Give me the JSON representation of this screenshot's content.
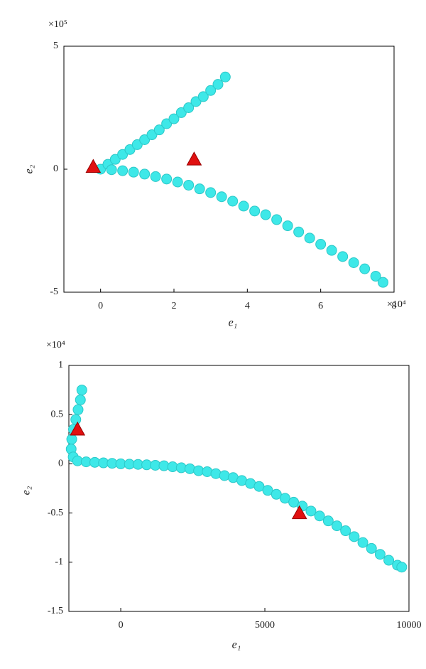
{
  "chart_data": [
    {
      "type": "scatter",
      "x_label": "e₁",
      "y_label": "e₂",
      "x_multiplier": "×10⁴",
      "y_multiplier": "×10⁵",
      "xlim": [
        -1,
        8
      ],
      "ylim": [
        -5,
        5
      ],
      "xticks": [
        0,
        2,
        4,
        6,
        8
      ],
      "yticks": [
        -5,
        0,
        5
      ],
      "series": [
        {
          "color": "#3ee8e8",
          "marker": "circle",
          "x": [
            0,
            0.2,
            0.4,
            0.6,
            0.8,
            1.0,
            1.2,
            1.4,
            1.6,
            1.8,
            2.0,
            2.2,
            2.4,
            2.6,
            2.8,
            3.0,
            3.2,
            3.4,
            0.3,
            0.6,
            0.9,
            1.2,
            1.5,
            1.8,
            2.1,
            2.4,
            2.7,
            3.0,
            3.3,
            3.6,
            3.9,
            4.2,
            4.5,
            4.8,
            5.1,
            5.4,
            5.7,
            6.0,
            6.3,
            6.6,
            6.9,
            7.2,
            7.5,
            7.7
          ],
          "values": [
            0,
            0.2,
            0.4,
            0.6,
            0.8,
            1.0,
            1.2,
            1.4,
            1.6,
            1.85,
            2.05,
            2.3,
            2.5,
            2.75,
            2.95,
            3.2,
            3.45,
            3.75,
            -0.02,
            -0.06,
            -0.12,
            -0.2,
            -0.3,
            -0.4,
            -0.52,
            -0.65,
            -0.8,
            -0.95,
            -1.12,
            -1.3,
            -1.5,
            -1.7,
            -1.85,
            -2.05,
            -2.3,
            -2.55,
            -2.8,
            -3.05,
            -3.3,
            -3.55,
            -3.8,
            -4.05,
            -4.35,
            -4.6
          ]
        },
        {
          "color": "#e01010",
          "marker": "triangle",
          "x": [
            -0.2,
            2.55
          ],
          "values": [
            0.1,
            0.4
          ]
        }
      ]
    },
    {
      "type": "scatter",
      "x_label": "e₁",
      "y_label": "e₂",
      "y_multiplier": "×10⁴",
      "xlim": [
        -1800,
        10000
      ],
      "ylim": [
        -1.5,
        1
      ],
      "xticks": [
        0,
        5000,
        10000
      ],
      "yticks": [
        -1.5,
        -1,
        -0.5,
        0,
        0.5,
        1
      ],
      "series": [
        {
          "color": "#3ee8e8",
          "marker": "circle",
          "x": [
            -1350,
            -1400,
            -1480,
            -1560,
            -1640,
            -1700,
            -1720,
            -1650,
            -1500,
            -1200,
            -900,
            -600,
            -300,
            0,
            300,
            600,
            900,
            1200,
            1500,
            1800,
            2100,
            2400,
            2700,
            3000,
            3300,
            3600,
            3900,
            4200,
            4500,
            4800,
            5100,
            5400,
            5700,
            6000,
            6300,
            6600,
            6900,
            7200,
            7500,
            7800,
            8100,
            8400,
            8700,
            9000,
            9300,
            9600,
            9750
          ],
          "values": [
            0.75,
            0.65,
            0.55,
            0.45,
            0.35,
            0.25,
            0.15,
            0.07,
            0.03,
            0.02,
            0.015,
            0.01,
            0.005,
            0,
            -0.003,
            -0.006,
            -0.01,
            -0.015,
            -0.02,
            -0.03,
            -0.04,
            -0.05,
            -0.07,
            -0.08,
            -0.1,
            -0.12,
            -0.14,
            -0.17,
            -0.2,
            -0.23,
            -0.27,
            -0.31,
            -0.35,
            -0.39,
            -0.43,
            -0.48,
            -0.53,
            -0.58,
            -0.63,
            -0.68,
            -0.74,
            -0.8,
            -0.86,
            -0.92,
            -0.98,
            -1.03,
            -1.05
          ]
        },
        {
          "color": "#e01010",
          "marker": "triangle",
          "x": [
            -1500,
            6200
          ],
          "values": [
            0.35,
            -0.5
          ]
        }
      ]
    }
  ]
}
